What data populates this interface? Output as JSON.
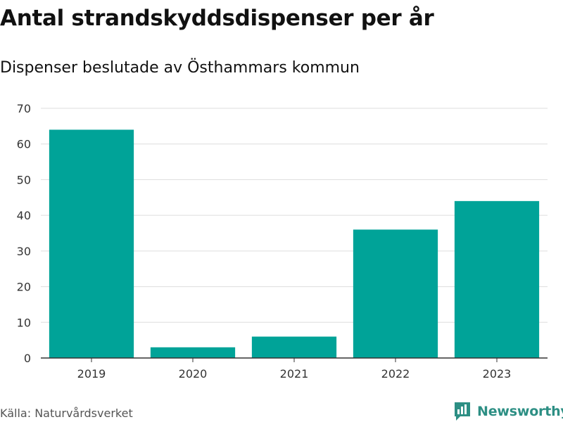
{
  "chart_data": {
    "type": "bar",
    "title": "Antal strandskyddsdispenser per år",
    "subtitle": "Dispenser beslutade av Östhammars kommun",
    "categories": [
      "2019",
      "2020",
      "2021",
      "2022",
      "2023"
    ],
    "values": [
      64,
      3,
      6,
      36,
      44
    ],
    "xlabel": "",
    "ylabel": "",
    "ylim": [
      0,
      70
    ],
    "yticks": [
      0,
      10,
      20,
      30,
      40,
      50,
      60,
      70
    ],
    "grid": true,
    "bar_color": "#00a398",
    "grid_color": "#dddddd",
    "axis_color": "#333333"
  },
  "footer": {
    "source": "Källa: Naturvårdsverket",
    "brand": "Newsworthy",
    "brand_color": "#2d8f84"
  }
}
